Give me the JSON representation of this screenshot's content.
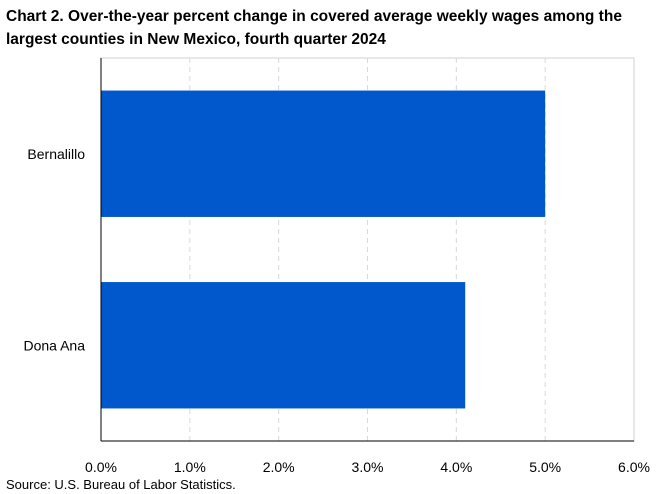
{
  "chart_data": {
    "type": "bar",
    "orientation": "horizontal",
    "title": "Chart 2. Over-the-year percent change in covered average weekly wages among the largest counties in New Mexico, fourth quarter 2024",
    "categories": [
      "Bernalillo",
      "Dona Ana"
    ],
    "values": [
      5.0,
      4.1
    ],
    "xlim": [
      0,
      6
    ],
    "xticks": [
      "0.0%",
      "1.0%",
      "2.0%",
      "3.0%",
      "4.0%",
      "5.0%",
      "6.0%"
    ],
    "xlabel": "",
    "ylabel": "",
    "grid": "vertical dashed",
    "bar_color": "#0058CC",
    "source": "Source: U.S. Bureau of Labor Statistics."
  }
}
